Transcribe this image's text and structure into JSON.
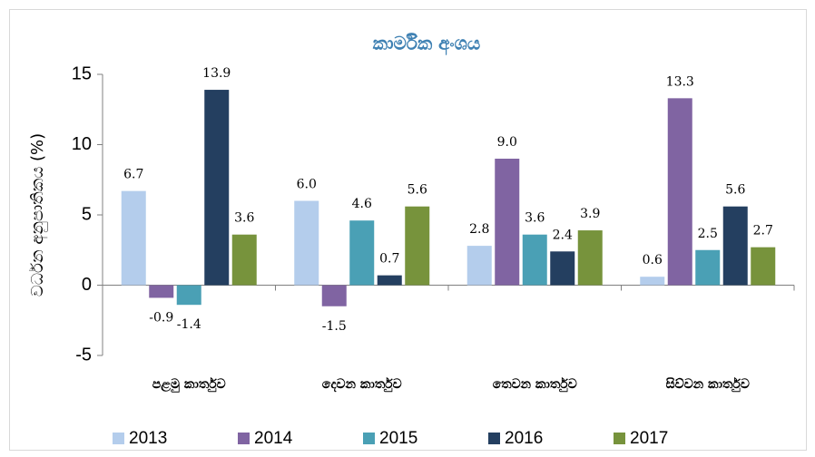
{
  "chart_data": {
    "type": "bar",
    "title": "කාර්මික අංශය",
    "y_label": "වර්ධන අනුපාතිකය (%)",
    "categories": [
      "පළමු කාර්තුව",
      "දෙවන කාර්තුව",
      "තෙවන කාර්තුව",
      "සිව්වන කාර්තුව"
    ],
    "series": [
      {
        "name": "2013",
        "color": "#b4cdec",
        "values": [
          6.7,
          6.0,
          2.8,
          0.6
        ],
        "value_labels": [
          "6.7",
          "6.0",
          "2.8",
          "0.6"
        ]
      },
      {
        "name": "2014",
        "color": "#8064a2",
        "values": [
          -0.9,
          -1.5,
          9.0,
          13.3
        ],
        "value_labels": [
          "-0.9",
          "-1.5",
          "9.0",
          "13.3"
        ]
      },
      {
        "name": "2015",
        "color": "#4aa0b5",
        "values": [
          -1.4,
          4.6,
          3.6,
          2.5
        ],
        "value_labels": [
          "-1.4",
          "4.6",
          "3.6",
          "2.5"
        ]
      },
      {
        "name": "2016",
        "color": "#243f60",
        "values": [
          13.9,
          0.7,
          2.4,
          5.6
        ],
        "value_labels": [
          "13.9",
          "0.7",
          "2.4",
          "5.6"
        ]
      },
      {
        "name": "2017",
        "color": "#77933c",
        "values": [
          3.6,
          5.6,
          3.9,
          2.7
        ],
        "value_labels": [
          "3.6",
          "5.6",
          "3.9",
          "2.7"
        ]
      }
    ],
    "ylim": [
      -5,
      15
    ],
    "yticks": [
      -5,
      0,
      5,
      10,
      15
    ],
    "legend": "bottom"
  }
}
